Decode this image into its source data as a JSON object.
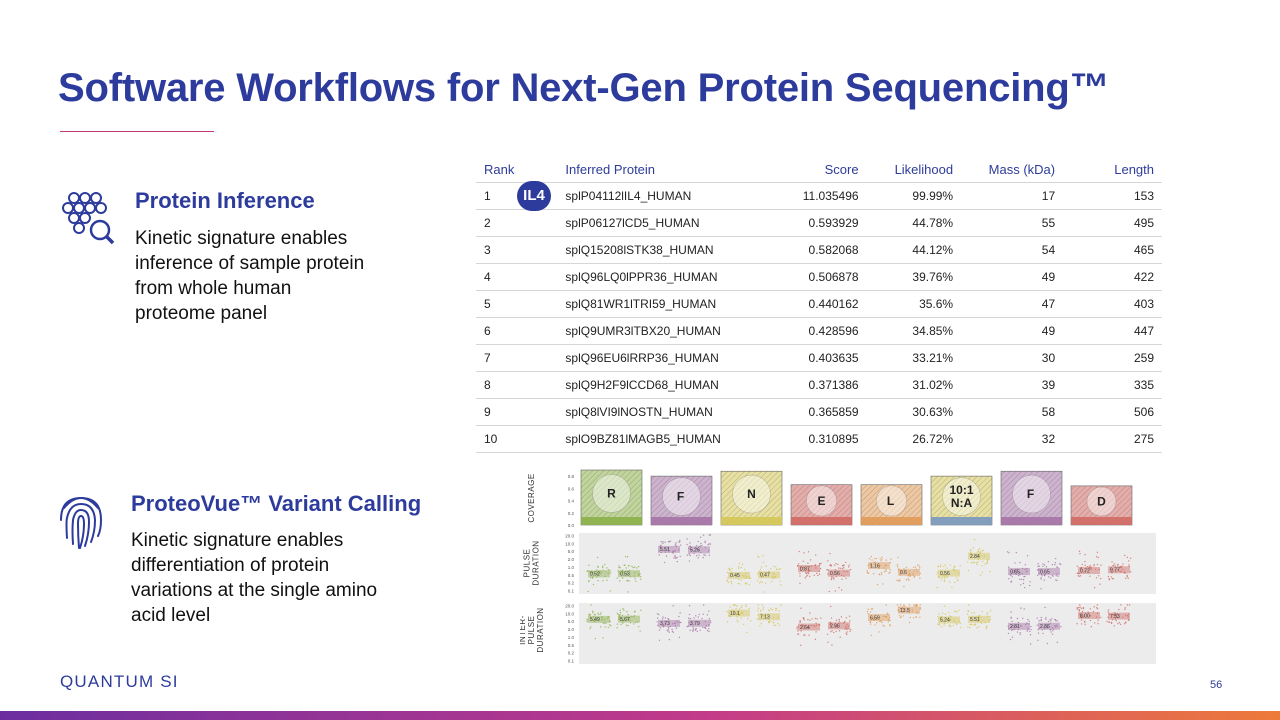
{
  "title": "Software Workflows for Next-Gen Protein Sequencing™",
  "sections": {
    "inference": {
      "icon": "protein-cluster-search-icon",
      "title": "Protein Inference",
      "lines": [
        "Kinetic signature enables",
        "inference of sample protein",
        "from whole human",
        "proteome panel"
      ]
    },
    "variant": {
      "icon": "fingerprint-icon",
      "title": "ProteoVue™ Variant Calling",
      "lines": [
        "Kinetic signature enables",
        "differentiation of protein",
        "variations at the single amino",
        "acid level"
      ]
    }
  },
  "table": {
    "headers": [
      "Rank",
      "Inferred Protein",
      "Score",
      "Likelihood",
      "Mass (kDa)",
      "Length"
    ],
    "badge": "IL4",
    "rows": [
      [
        "1",
        "splP04112lIL4_HUMAN",
        "11.035496",
        "99.99%",
        "17",
        "153"
      ],
      [
        "2",
        "splP06127lCD5_HUMAN",
        "0.593929",
        "44.78%",
        "55",
        "495"
      ],
      [
        "3",
        "splQ15208lSTK38_HUMAN",
        "0.582068",
        "44.12%",
        "54",
        "465"
      ],
      [
        "4",
        "splQ96LQ0lPPR36_HUMAN",
        "0.506878",
        "39.76%",
        "49",
        "422"
      ],
      [
        "5",
        "splQ81WR1lTRI59_HUMAN",
        "0.440162",
        "35.6%",
        "47",
        "403"
      ],
      [
        "6",
        "splQ9UMR3lTBX20_HUMAN",
        "0.428596",
        "34.85%",
        "49",
        "447"
      ],
      [
        "7",
        "splQ96EU6lRRP36_HUMAN",
        "0.403635",
        "33.21%",
        "30",
        "259"
      ],
      [
        "8",
        "splQ9H2F9lCCD68_HUMAN",
        "0.371386",
        "31.02%",
        "39",
        "335"
      ],
      [
        "9",
        "splQ8lVI9lNOSTN_HUMAN",
        "0.365859",
        "30.63%",
        "58",
        "506"
      ],
      [
        "10",
        "splO9BZ81lMAGB5_HUMAN",
        "0.310895",
        "26.72%",
        "32",
        "275"
      ]
    ]
  },
  "chart_data": {
    "type": "bar",
    "row_labels": [
      "COVERAGE",
      "PULSE DURATION",
      "INTER-PULSE DURATION"
    ],
    "coverage_ticks": [
      "0.0",
      "0.2",
      "0.4",
      "0.6",
      "0.8"
    ],
    "duration_ticks": [
      "20.0",
      "10.0",
      "5.0",
      "2.0",
      "1.0",
      "0.5",
      "0.2",
      "0.1"
    ],
    "residues": [
      {
        "label": "R",
        "coverage": 0.9,
        "color": "#8cb04a",
        "pd": [
          "0.52",
          "0.53"
        ],
        "ipd": [
          "5.49",
          "5.67"
        ]
      },
      {
        "label": "F",
        "coverage": 0.8,
        "color": "#a674a6",
        "pd": [
          "5.51",
          "5.26"
        ],
        "ipd": [
          "3.73",
          "3.79"
        ]
      },
      {
        "label": "N",
        "coverage": 0.88,
        "color": "#d4c656",
        "pd": [
          "0.45",
          "0.47"
        ],
        "ipd": [
          "10.1",
          "7.13"
        ]
      },
      {
        "label": "E",
        "coverage": 0.66,
        "color": "#d06a64",
        "pd": [
          "0.87",
          "0.56"
        ],
        "ipd": [
          "2.64",
          "2.96"
        ]
      },
      {
        "label": "L",
        "coverage": 0.66,
        "color": "#e09a56",
        "pd": [
          "1.16",
          "0.6"
        ],
        "ipd": [
          "6.59",
          "13.5"
        ]
      },
      {
        "label": "10:1\nN:A",
        "coverage": 0.8,
        "color": "#d4c656",
        "color2": "#7898c0",
        "pd": [
          "0.56",
          "2.84"
        ],
        "ipd": [
          "5.24",
          "5.51"
        ]
      },
      {
        "label": "F",
        "coverage": 0.88,
        "color": "#a674a6",
        "pd": [
          "0.65",
          "0.65"
        ],
        "ipd": [
          "2.81",
          "2.86"
        ]
      },
      {
        "label": "D",
        "coverage": 0.64,
        "color": "#d06a64",
        "pd": [
          "0.72",
          "0.77"
        ],
        "ipd": [
          "8.00",
          "7.53"
        ]
      }
    ]
  },
  "footer": {
    "logo": "QUANTUM SI",
    "page": "56"
  },
  "colors": {
    "brand": "#2d3c9c",
    "accent": "#c2387d"
  }
}
